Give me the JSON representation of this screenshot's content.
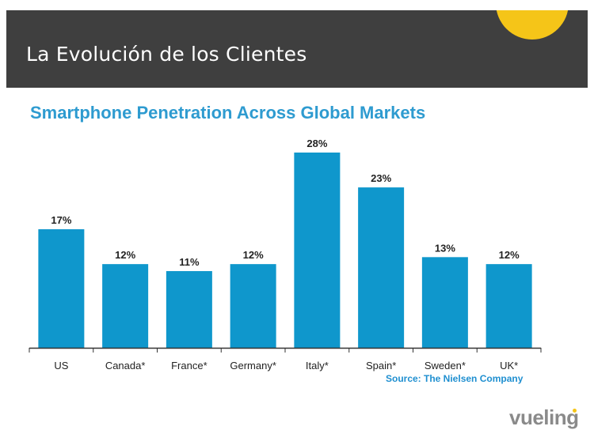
{
  "slide": {
    "title": "La Evolución de los Clientes",
    "accent_color": "#f5c518",
    "header_color": "#3f3f3f"
  },
  "logo": {
    "text": "vueling"
  },
  "source": "Source: The Nielsen Company",
  "chart_data": {
    "type": "bar",
    "title": "Smartphone Penetration Across Global Markets",
    "categories": [
      "US",
      "Canada*",
      "France*",
      "Germany*",
      "Italy*",
      "Spain*",
      "Sweden*",
      "UK*"
    ],
    "values": [
      17,
      12,
      11,
      12,
      28,
      23,
      13,
      12
    ],
    "value_labels": [
      "17%",
      "12%",
      "11%",
      "12%",
      "28%",
      "23%",
      "13%",
      "12%"
    ],
    "bar_color": "#0f97cc",
    "ylim": [
      0,
      28
    ],
    "grid": false,
    "legend": "none",
    "xlabel": "",
    "ylabel": ""
  }
}
